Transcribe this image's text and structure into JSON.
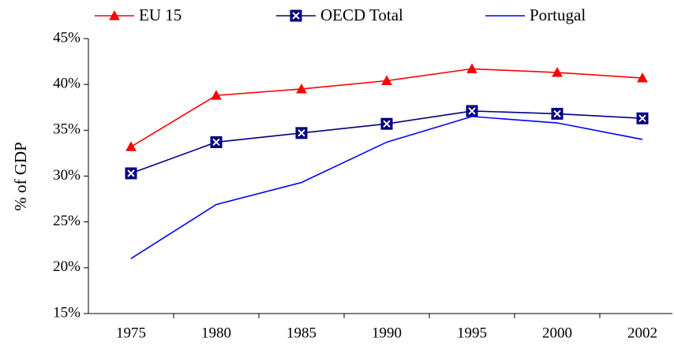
{
  "chart_data": {
    "type": "line",
    "y_label": "% of GDP",
    "categories": [
      "1975",
      "1980",
      "1985",
      "1990",
      "1995",
      "2000",
      "2002"
    ],
    "series": [
      {
        "name": "EU 15",
        "color": "#ff0000",
        "marker": "triangle",
        "values": [
          33.2,
          38.8,
          39.5,
          40.4,
          41.7,
          41.3,
          40.7
        ]
      },
      {
        "name": "OECD Total",
        "color": "#000080",
        "marker": "square-x",
        "values": [
          30.3,
          33.7,
          34.7,
          35.7,
          37.1,
          36.8,
          36.3
        ]
      },
      {
        "name": "Portugal",
        "color": "#0000ff",
        "marker": "none",
        "values": [
          21.0,
          26.9,
          29.3,
          33.7,
          36.5,
          35.8,
          34.0
        ]
      }
    ],
    "ylim": [
      15,
      45
    ],
    "yticks": [
      {
        "value": 15,
        "label": "15%"
      },
      {
        "value": 20,
        "label": "20%"
      },
      {
        "value": 25,
        "label": "25%"
      },
      {
        "value": 30,
        "label": "30%"
      },
      {
        "value": 35,
        "label": "35%"
      },
      {
        "value": 40,
        "label": "40%"
      },
      {
        "value": 45,
        "label": "45%"
      }
    ],
    "grid": false
  }
}
